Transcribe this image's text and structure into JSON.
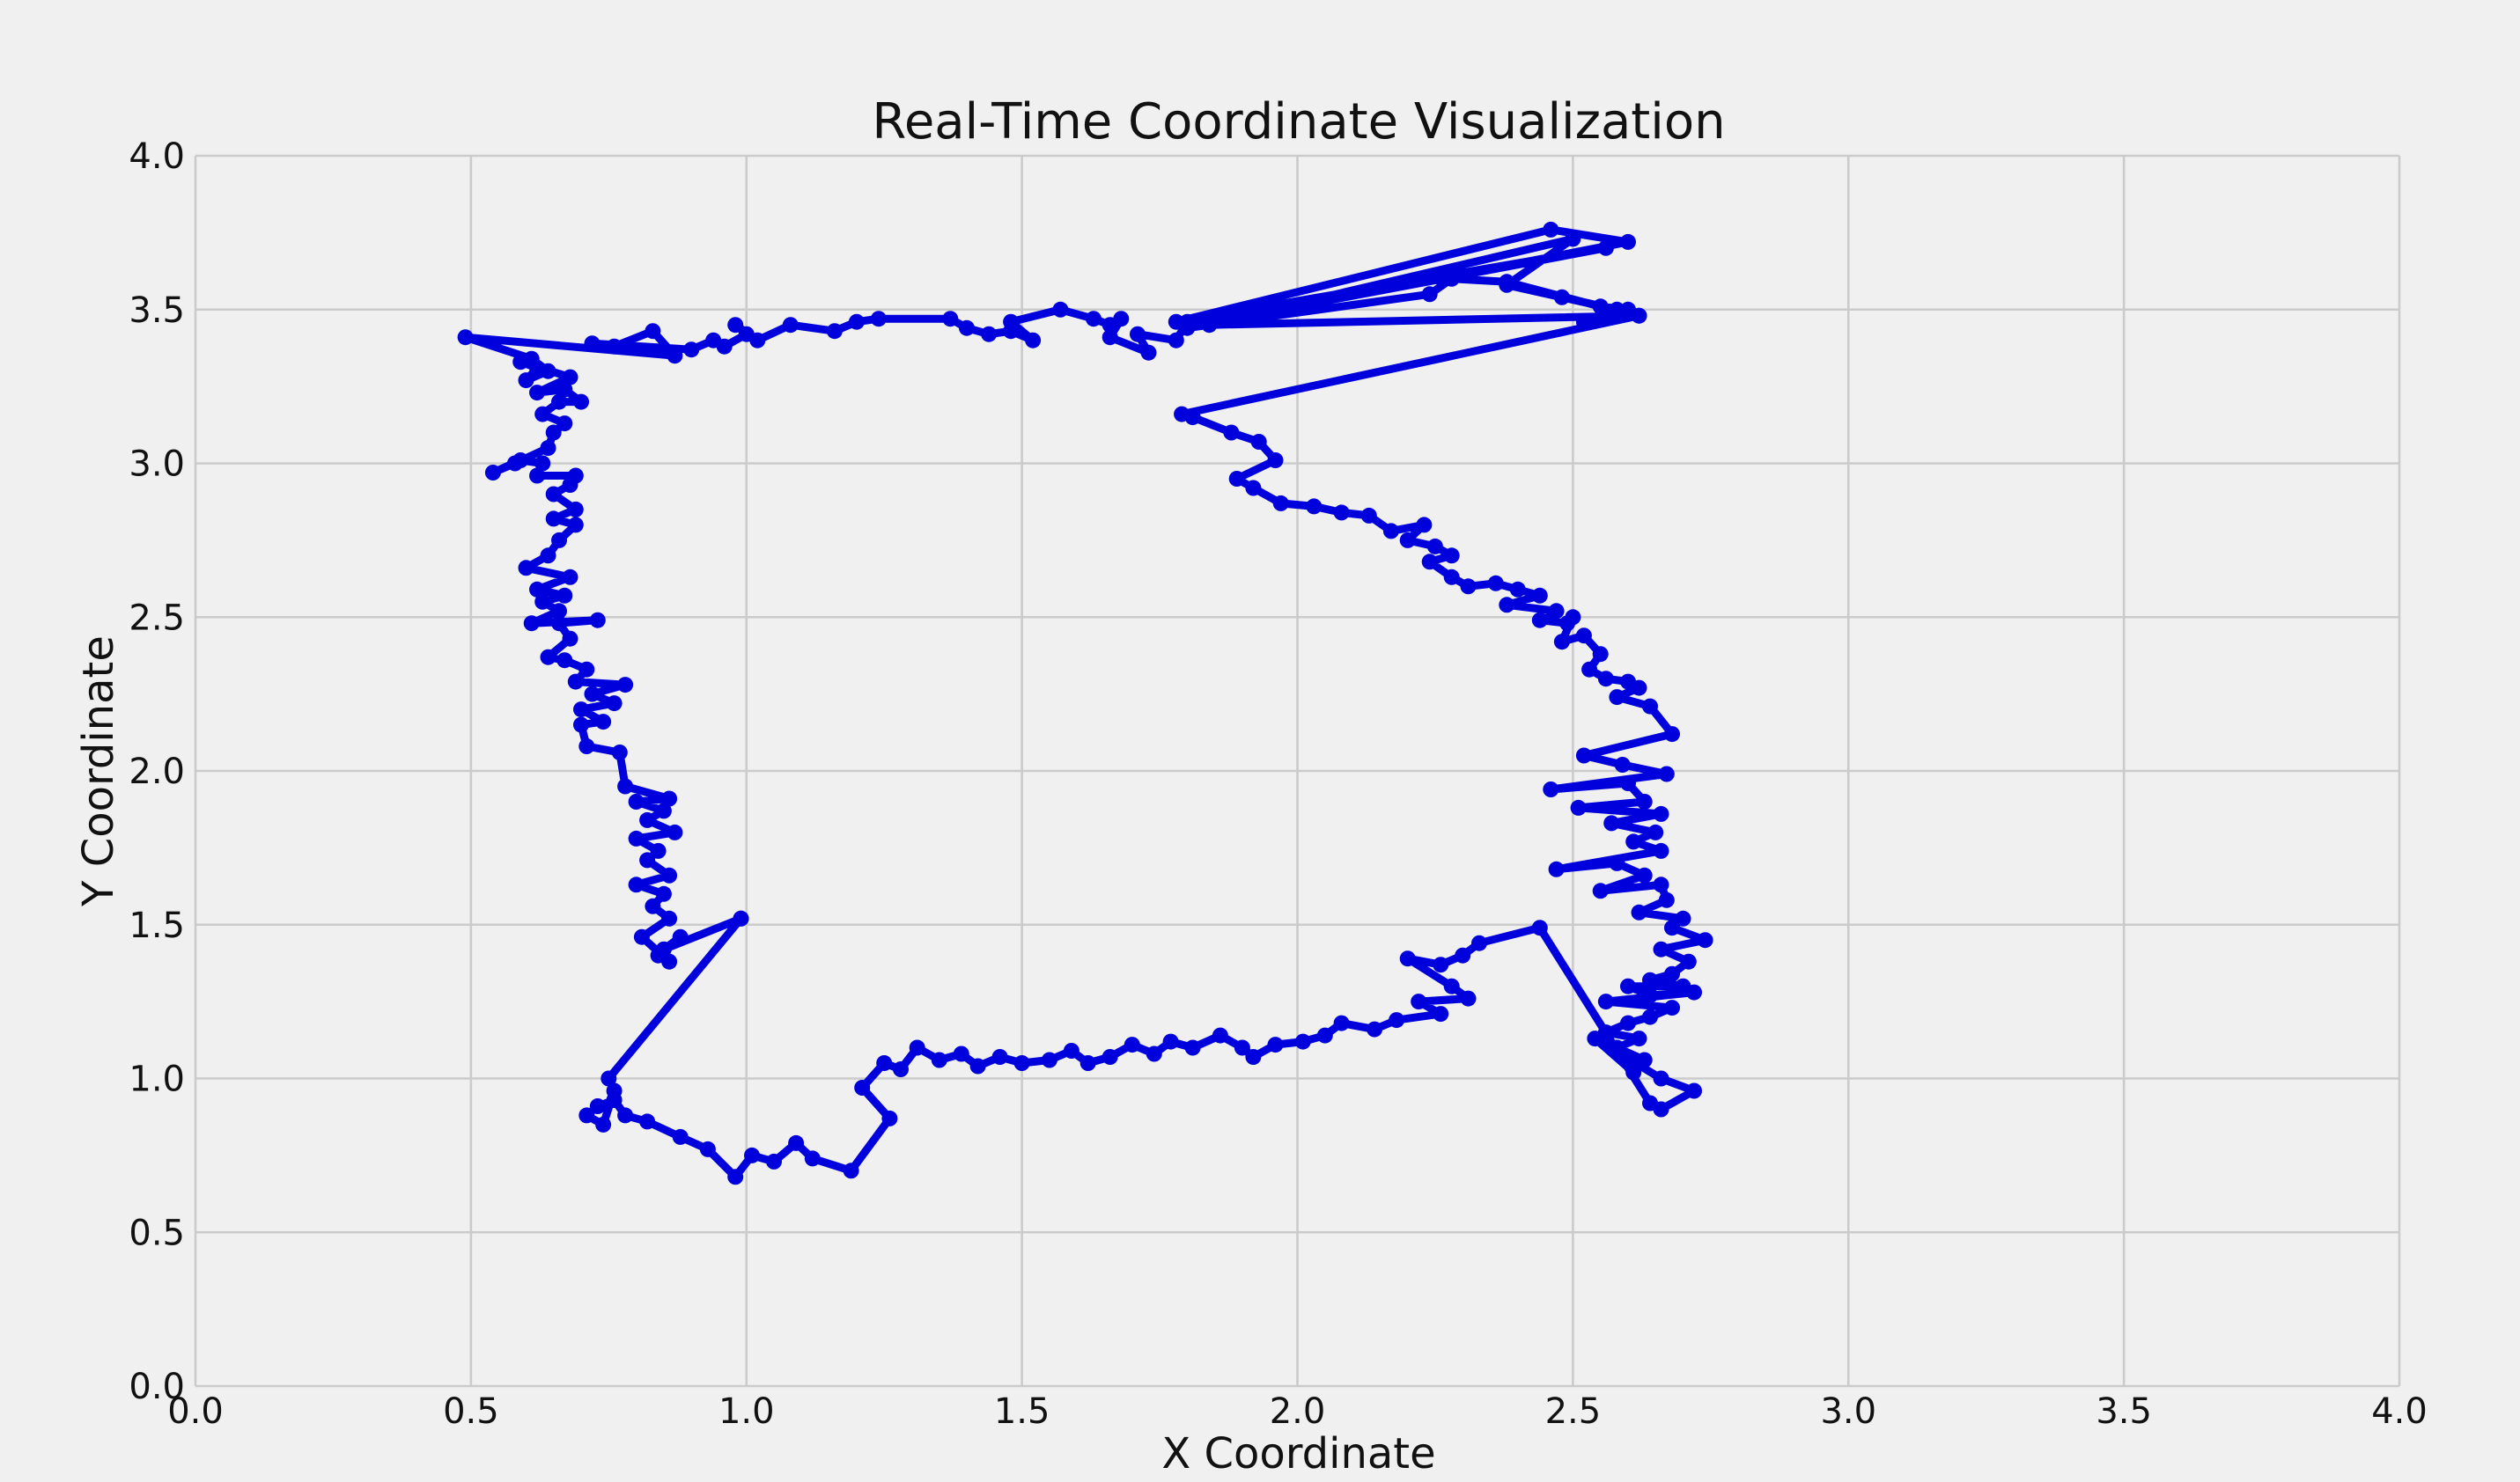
{
  "chart_data": {
    "type": "line",
    "title": "Real-Time Coordinate Visualization",
    "xlabel": "X Coordinate",
    "ylabel": "Y Coordinate",
    "xlim": [
      0.0,
      4.0
    ],
    "ylim": [
      0.0,
      4.0
    ],
    "xticks": [
      "0.0",
      "0.5",
      "1.0",
      "1.5",
      "2.0",
      "2.5",
      "3.0",
      "3.5",
      "4.0"
    ],
    "yticks": [
      "0.0",
      "0.5",
      "1.0",
      "1.5",
      "2.0",
      "2.5",
      "3.0",
      "3.5",
      "4.0"
    ],
    "grid": true,
    "marker": "circle",
    "line_color": "#0000dd",
    "background": "#f0f0f0",
    "series": [
      {
        "points": [
          [
            0.99,
            1.52
          ],
          [
            0.85,
            1.42
          ],
          [
            0.88,
            1.46
          ],
          [
            0.84,
            1.4
          ],
          [
            0.86,
            1.38
          ],
          [
            0.81,
            1.46
          ],
          [
            0.86,
            1.52
          ],
          [
            0.83,
            1.56
          ],
          [
            0.85,
            1.6
          ],
          [
            0.8,
            1.63
          ],
          [
            0.86,
            1.66
          ],
          [
            0.82,
            1.71
          ],
          [
            0.84,
            1.74
          ],
          [
            0.8,
            1.78
          ],
          [
            0.87,
            1.8
          ],
          [
            0.82,
            1.84
          ],
          [
            0.85,
            1.87
          ],
          [
            0.8,
            1.9
          ],
          [
            0.86,
            1.91
          ],
          [
            0.78,
            1.95
          ],
          [
            0.77,
            2.06
          ],
          [
            0.71,
            2.08
          ],
          [
            0.7,
            2.15
          ],
          [
            0.74,
            2.16
          ],
          [
            0.7,
            2.2
          ],
          [
            0.76,
            2.22
          ],
          [
            0.72,
            2.25
          ],
          [
            0.78,
            2.28
          ],
          [
            0.69,
            2.29
          ],
          [
            0.71,
            2.33
          ],
          [
            0.67,
            2.36
          ],
          [
            0.64,
            2.37
          ],
          [
            0.68,
            2.43
          ],
          [
            0.66,
            2.48
          ],
          [
            0.73,
            2.49
          ],
          [
            0.61,
            2.48
          ],
          [
            0.66,
            2.52
          ],
          [
            0.63,
            2.55
          ],
          [
            0.67,
            2.57
          ],
          [
            0.62,
            2.59
          ],
          [
            0.68,
            2.63
          ],
          [
            0.6,
            2.66
          ],
          [
            0.64,
            2.7
          ],
          [
            0.66,
            2.75
          ],
          [
            0.69,
            2.8
          ],
          [
            0.65,
            2.82
          ],
          [
            0.69,
            2.85
          ],
          [
            0.65,
            2.9
          ],
          [
            0.68,
            2.93
          ],
          [
            0.69,
            2.96
          ],
          [
            0.62,
            2.96
          ],
          [
            0.63,
            3.0
          ],
          [
            0.59,
            3.01
          ],
          [
            0.54,
            2.97
          ],
          [
            0.58,
            3.0
          ],
          [
            0.64,
            3.05
          ],
          [
            0.65,
            3.1
          ],
          [
            0.67,
            3.13
          ],
          [
            0.63,
            3.16
          ],
          [
            0.66,
            3.2
          ],
          [
            0.7,
            3.2
          ],
          [
            0.67,
            3.24
          ],
          [
            0.62,
            3.23
          ],
          [
            0.68,
            3.28
          ],
          [
            0.59,
            3.33
          ],
          [
            0.62,
            3.31
          ],
          [
            0.6,
            3.27
          ],
          [
            0.64,
            3.3
          ],
          [
            0.61,
            3.34
          ],
          [
            0.49,
            3.41
          ],
          [
            0.87,
            3.35
          ],
          [
            0.83,
            3.43
          ],
          [
            0.76,
            3.38
          ],
          [
            0.72,
            3.39
          ],
          [
            0.9,
            3.37
          ],
          [
            0.94,
            3.4
          ],
          [
            0.96,
            3.38
          ],
          [
            1.0,
            3.42
          ],
          [
            0.98,
            3.45
          ],
          [
            1.02,
            3.4
          ],
          [
            1.08,
            3.45
          ],
          [
            1.16,
            3.43
          ],
          [
            1.2,
            3.46
          ],
          [
            1.24,
            3.47
          ],
          [
            1.37,
            3.47
          ],
          [
            1.4,
            3.44
          ],
          [
            1.44,
            3.42
          ],
          [
            1.48,
            3.43
          ],
          [
            1.52,
            3.4
          ],
          [
            1.48,
            3.46
          ],
          [
            1.57,
            3.5
          ],
          [
            1.63,
            3.47
          ],
          [
            1.66,
            3.45
          ],
          [
            1.68,
            3.47
          ],
          [
            1.66,
            3.41
          ],
          [
            1.73,
            3.36
          ],
          [
            1.71,
            3.42
          ],
          [
            1.78,
            3.4
          ],
          [
            1.8,
            3.46
          ],
          [
            1.84,
            3.45
          ],
          [
            2.62,
            3.48
          ],
          [
            2.55,
            3.47
          ],
          [
            2.6,
            3.5
          ],
          [
            2.55,
            3.51
          ],
          [
            2.38,
            3.59
          ],
          [
            2.28,
            3.6
          ],
          [
            2.24,
            3.55
          ],
          [
            1.8,
            3.44
          ],
          [
            2.6,
            3.72
          ],
          [
            2.46,
            3.76
          ],
          [
            1.78,
            3.46
          ],
          [
            2.56,
            3.7
          ],
          [
            1.88,
            3.47
          ],
          [
            2.5,
            3.73
          ],
          [
            2.38,
            3.58
          ],
          [
            2.48,
            3.54
          ],
          [
            2.58,
            3.5
          ],
          [
            2.52,
            3.46
          ],
          [
            2.62,
            3.48
          ],
          [
            1.79,
            3.16
          ],
          [
            1.81,
            3.15
          ],
          [
            1.88,
            3.1
          ],
          [
            1.93,
            3.07
          ],
          [
            1.96,
            3.01
          ],
          [
            1.89,
            2.95
          ],
          [
            1.92,
            2.92
          ],
          [
            1.97,
            2.87
          ],
          [
            2.03,
            2.86
          ],
          [
            2.08,
            2.84
          ],
          [
            2.13,
            2.83
          ],
          [
            2.17,
            2.78
          ],
          [
            2.23,
            2.8
          ],
          [
            2.2,
            2.75
          ],
          [
            2.25,
            2.73
          ],
          [
            2.28,
            2.7
          ],
          [
            2.24,
            2.68
          ],
          [
            2.28,
            2.63
          ],
          [
            2.31,
            2.6
          ],
          [
            2.36,
            2.61
          ],
          [
            2.4,
            2.59
          ],
          [
            2.44,
            2.57
          ],
          [
            2.38,
            2.54
          ],
          [
            2.47,
            2.52
          ],
          [
            2.44,
            2.49
          ],
          [
            2.49,
            2.48
          ],
          [
            2.5,
            2.5
          ],
          [
            2.48,
            2.42
          ],
          [
            2.52,
            2.44
          ],
          [
            2.55,
            2.38
          ],
          [
            2.53,
            2.33
          ],
          [
            2.56,
            2.3
          ],
          [
            2.6,
            2.29
          ],
          [
            2.62,
            2.27
          ],
          [
            2.58,
            2.24
          ],
          [
            2.64,
            2.21
          ],
          [
            2.68,
            2.12
          ],
          [
            2.52,
            2.05
          ],
          [
            2.59,
            2.02
          ],
          [
            2.67,
            1.99
          ],
          [
            2.46,
            1.94
          ],
          [
            2.6,
            1.96
          ],
          [
            2.63,
            1.9
          ],
          [
            2.51,
            1.88
          ],
          [
            2.66,
            1.86
          ],
          [
            2.57,
            1.83
          ],
          [
            2.65,
            1.8
          ],
          [
            2.61,
            1.77
          ],
          [
            2.66,
            1.74
          ],
          [
            2.47,
            1.68
          ],
          [
            2.58,
            1.7
          ],
          [
            2.63,
            1.66
          ],
          [
            2.55,
            1.61
          ],
          [
            2.66,
            1.63
          ],
          [
            2.67,
            1.58
          ],
          [
            2.62,
            1.54
          ],
          [
            2.7,
            1.52
          ],
          [
            2.68,
            1.49
          ],
          [
            2.74,
            1.45
          ],
          [
            2.66,
            1.42
          ],
          [
            2.71,
            1.38
          ],
          [
            2.68,
            1.34
          ],
          [
            2.64,
            1.32
          ],
          [
            2.7,
            1.3
          ],
          [
            2.6,
            1.3
          ],
          [
            2.64,
            1.27
          ],
          [
            2.72,
            1.28
          ],
          [
            2.56,
            1.25
          ],
          [
            2.68,
            1.23
          ],
          [
            2.64,
            1.2
          ],
          [
            2.6,
            1.18
          ],
          [
            2.56,
            1.15
          ],
          [
            2.62,
            1.13
          ],
          [
            2.58,
            1.1
          ],
          [
            2.63,
            1.06
          ],
          [
            2.61,
            1.02
          ],
          [
            2.54,
            1.13
          ],
          [
            2.66,
            1.0
          ],
          [
            2.72,
            0.96
          ],
          [
            2.66,
            0.9
          ],
          [
            2.64,
            0.92
          ],
          [
            2.44,
            1.49
          ],
          [
            2.33,
            1.44
          ],
          [
            2.3,
            1.4
          ],
          [
            2.26,
            1.37
          ],
          [
            2.2,
            1.39
          ],
          [
            2.28,
            1.3
          ],
          [
            2.31,
            1.26
          ],
          [
            2.22,
            1.25
          ],
          [
            2.26,
            1.21
          ],
          [
            2.18,
            1.19
          ],
          [
            2.14,
            1.16
          ],
          [
            2.08,
            1.18
          ],
          [
            2.05,
            1.14
          ],
          [
            2.01,
            1.12
          ],
          [
            1.96,
            1.11
          ],
          [
            1.92,
            1.07
          ],
          [
            1.9,
            1.1
          ],
          [
            1.86,
            1.14
          ],
          [
            1.81,
            1.1
          ],
          [
            1.77,
            1.12
          ],
          [
            1.74,
            1.08
          ],
          [
            1.7,
            1.11
          ],
          [
            1.66,
            1.07
          ],
          [
            1.62,
            1.05
          ],
          [
            1.59,
            1.09
          ],
          [
            1.55,
            1.06
          ],
          [
            1.5,
            1.05
          ],
          [
            1.46,
            1.07
          ],
          [
            1.42,
            1.04
          ],
          [
            1.39,
            1.08
          ],
          [
            1.35,
            1.06
          ],
          [
            1.31,
            1.1
          ],
          [
            1.28,
            1.03
          ],
          [
            1.25,
            1.05
          ],
          [
            1.21,
            0.97
          ],
          [
            1.26,
            0.87
          ],
          [
            1.19,
            0.7
          ],
          [
            1.12,
            0.74
          ],
          [
            1.09,
            0.79
          ],
          [
            1.05,
            0.73
          ],
          [
            1.01,
            0.75
          ],
          [
            0.98,
            0.68
          ],
          [
            0.93,
            0.77
          ],
          [
            0.88,
            0.81
          ],
          [
            0.82,
            0.86
          ],
          [
            0.78,
            0.88
          ],
          [
            0.76,
            0.93
          ],
          [
            0.73,
            0.91
          ],
          [
            0.71,
            0.88
          ],
          [
            0.74,
            0.85
          ],
          [
            0.76,
            0.96
          ],
          [
            0.75,
            1.0
          ],
          [
            0.99,
            1.52
          ]
        ]
      }
    ]
  }
}
